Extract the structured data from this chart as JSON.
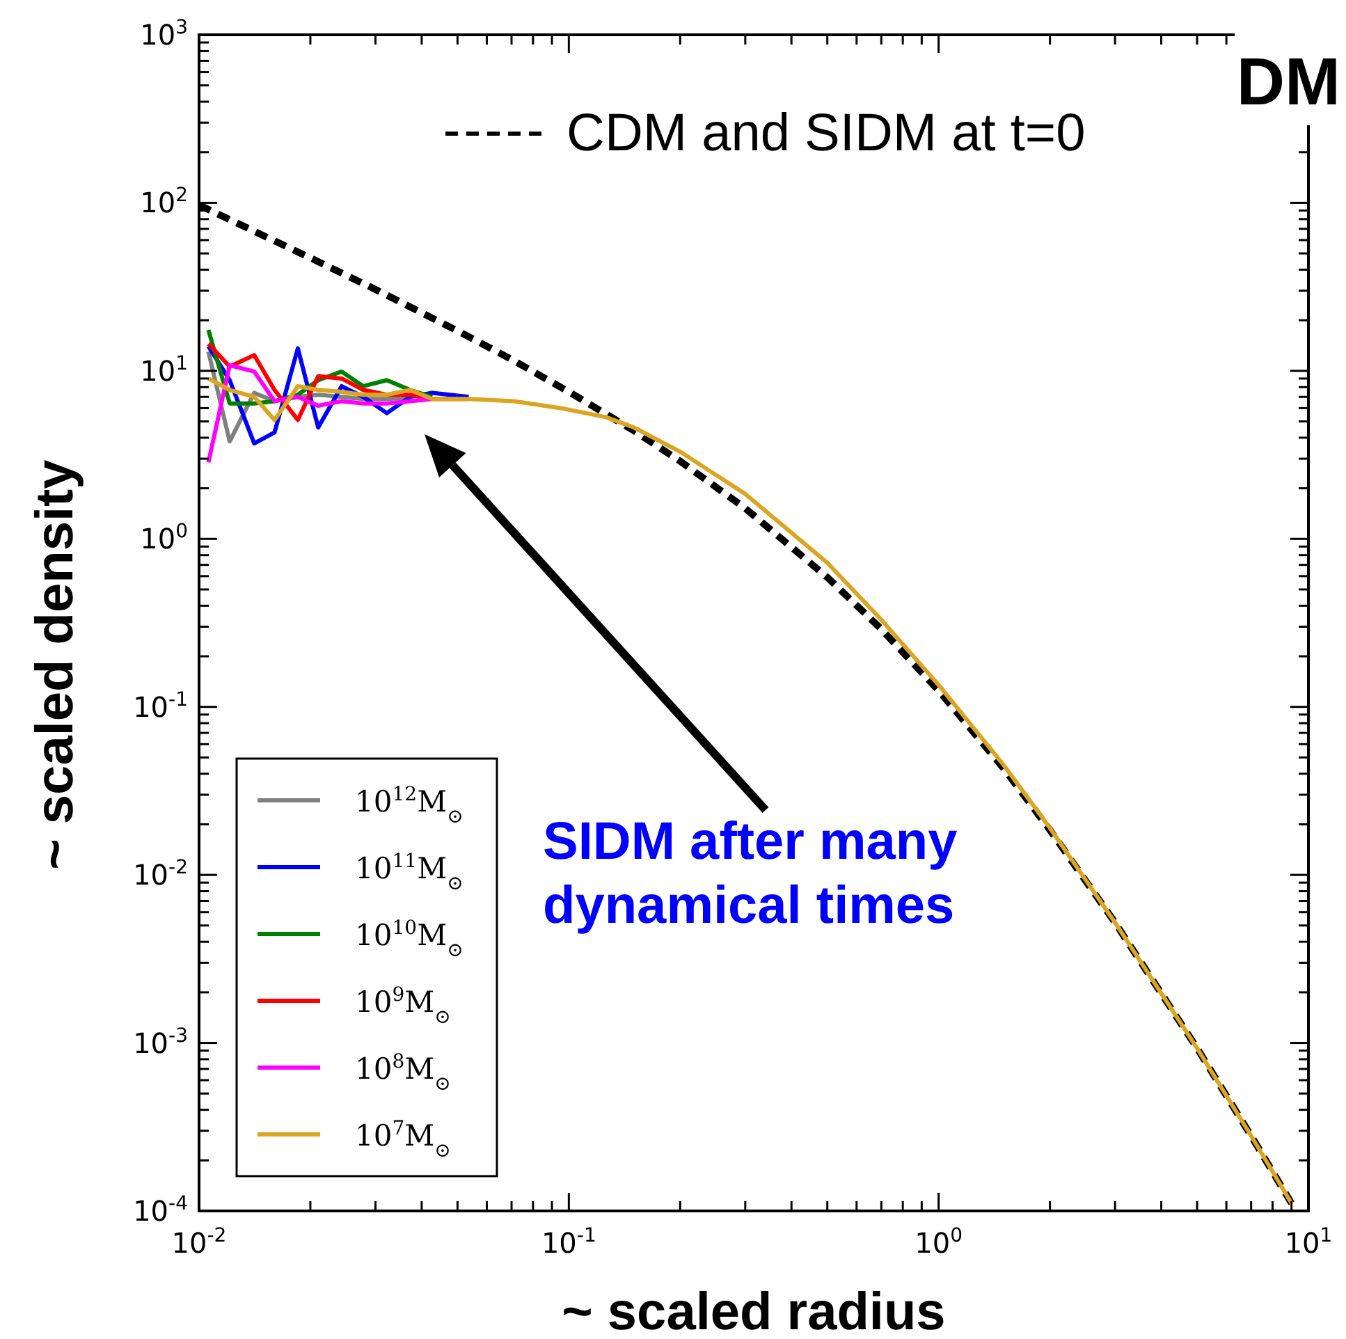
{
  "chart_data": {
    "type": "line",
    "title": "DM",
    "xlabel": "~ scaled radius",
    "ylabel": "~ scaled density",
    "log": "xy",
    "grid": false,
    "legend": "bottom left",
    "marker": "none",
    "xlim": [
      0.01,
      10
    ],
    "ylim": [
      0.0001,
      1000
    ],
    "xticks": [
      {
        "value": 0.01,
        "label": "10$^{-2}$"
      },
      {
        "value": 0.02,
        "label": null
      },
      {
        "value": 0.03,
        "label": null
      },
      {
        "value": 0.04,
        "label": null
      },
      {
        "value": 0.05,
        "label": null
      },
      {
        "value": 0.06,
        "label": null
      },
      {
        "value": 0.07,
        "label": null
      },
      {
        "value": 0.08,
        "label": null
      },
      {
        "value": 0.09,
        "label": null
      },
      {
        "value": 0.1,
        "label": "10$^{-1}$"
      },
      {
        "value": 0.2,
        "label": null
      },
      {
        "value": 0.3,
        "label": null
      },
      {
        "value": 0.4,
        "label": null
      },
      {
        "value": 0.5,
        "label": null
      },
      {
        "value": 0.6,
        "label": null
      },
      {
        "value": 0.7,
        "label": null
      },
      {
        "value": 0.8,
        "label": null
      },
      {
        "value": 0.9,
        "label": null
      },
      {
        "value": 1,
        "label": "10$^{0}$"
      },
      {
        "value": 2,
        "label": null
      },
      {
        "value": 3,
        "label": null
      },
      {
        "value": 4,
        "label": null
      },
      {
        "value": 5,
        "label": null
      },
      {
        "value": 6,
        "label": null
      },
      {
        "value": 7,
        "label": null
      },
      {
        "value": 8,
        "label": null
      },
      {
        "value": 9,
        "label": null
      },
      {
        "value": 10,
        "label": "10$^{1}$"
      }
    ],
    "yticks": [
      {
        "value": 0.0001,
        "label": "10$^{-4}$"
      },
      {
        "value": 0.0002,
        "label": null
      },
      {
        "value": 0.0003,
        "label": null
      },
      {
        "value": 0.0004,
        "label": null
      },
      {
        "value": 0.0005,
        "label": null
      },
      {
        "value": 0.0006,
        "label": null
      },
      {
        "value": 0.0007,
        "label": null
      },
      {
        "value": 0.0008,
        "label": null
      },
      {
        "value": 0.0009,
        "label": null
      },
      {
        "value": 0.001,
        "label": "10$^{-3}$"
      },
      {
        "value": 0.002,
        "label": null
      },
      {
        "value": 0.003,
        "label": null
      },
      {
        "value": 0.004,
        "label": null
      },
      {
        "value": 0.005,
        "label": null
      },
      {
        "value": 0.006,
        "label": null
      },
      {
        "value": 0.007,
        "label": null
      },
      {
        "value": 0.008,
        "label": null
      },
      {
        "value": 0.009,
        "label": null
      },
      {
        "value": 0.01,
        "label": "10$^{-2}$"
      },
      {
        "value": 0.02,
        "label": null
      },
      {
        "value": 0.03,
        "label": null
      },
      {
        "value": 0.04,
        "label": null
      },
      {
        "value": 0.05,
        "label": null
      },
      {
        "value": 0.06,
        "label": null
      },
      {
        "value": 0.07,
        "label": null
      },
      {
        "value": 0.08,
        "label": null
      },
      {
        "value": 0.09,
        "label": null
      },
      {
        "value": 0.1,
        "label": "10$^{-1}$"
      },
      {
        "value": 0.2,
        "label": null
      },
      {
        "value": 0.3,
        "label": null
      },
      {
        "value": 0.4,
        "label": null
      },
      {
        "value": 0.5,
        "label": null
      },
      {
        "value": 0.6,
        "label": null
      },
      {
        "value": 0.7,
        "label": null
      },
      {
        "value": 0.8,
        "label": null
      },
      {
        "value": 0.9,
        "label": null
      },
      {
        "value": 1,
        "label": "10$^{0}$"
      },
      {
        "value": 2,
        "label": null
      },
      {
        "value": 3,
        "label": null
      },
      {
        "value": 4,
        "label": null
      },
      {
        "value": 5,
        "label": null
      },
      {
        "value": 6,
        "label": null
      },
      {
        "value": 7,
        "label": null
      },
      {
        "value": 8,
        "label": null
      },
      {
        "value": 9,
        "label": null
      },
      {
        "value": 10,
        "label": "10$^{1}$"
      },
      {
        "value": 20,
        "label": null
      },
      {
        "value": 30,
        "label": null
      },
      {
        "value": 40,
        "label": null
      },
      {
        "value": 50,
        "label": null
      },
      {
        "value": 60,
        "label": null
      },
      {
        "value": 70,
        "label": null
      },
      {
        "value": 80,
        "label": null
      },
      {
        "value": 90,
        "label": null
      },
      {
        "value": 100,
        "label": "10$^{2}$"
      },
      {
        "value": 200,
        "label": null
      },
      {
        "value": 300,
        "label": null
      },
      {
        "value": 400,
        "label": null
      },
      {
        "value": 500,
        "label": null
      },
      {
        "value": 600,
        "label": null
      },
      {
        "value": 700,
        "label": null
      },
      {
        "value": 800,
        "label": null
      },
      {
        "value": 900,
        "label": null
      },
      {
        "value": 1000,
        "label": "10$^{3}$"
      }
    ],
    "annotations": [
      "SIDM after many\ndynamical times"
    ],
    "series": [
      {
        "name": "CDM and SIDM at t=0",
        "color": "#000000",
        "line_style": "dashed",
        "x": [
          0.01,
          0.02,
          0.03,
          0.05,
          0.07,
          0.1,
          0.15,
          0.2,
          0.3,
          0.5,
          0.7,
          1,
          1.5,
          2,
          3,
          5,
          7,
          9
        ],
        "values": [
          97,
          47,
          30.5,
          17.3,
          11.7,
          7.5,
          4.4,
          2.9,
          1.52,
          0.59,
          0.29,
          0.125,
          0.043,
          0.0185,
          0.0052,
          0.00093,
          0.00028,
          0.000111
        ]
      },
      {
        "name": "10$^{12}$M$_{⊙}$",
        "color": "#808080",
        "line_style": "solid",
        "x": [
          0.0106,
          0.0121,
          0.0141,
          0.016,
          0.0185,
          0.021,
          0.0243,
          0.0278,
          0.0322,
          0.0372
        ],
        "values": [
          13,
          3.8,
          7.4,
          6.6,
          7.0,
          7.2,
          7.0,
          6.8,
          6.8,
          6.9
        ]
      },
      {
        "name": "10$^{11}$M$_{⊙}$",
        "color": "#0000ff",
        "line_style": "solid",
        "x": [
          0.0106,
          0.0121,
          0.0141,
          0.016,
          0.0185,
          0.021,
          0.0243,
          0.0278,
          0.0322,
          0.0372,
          0.0427,
          0.0536
        ],
        "values": [
          14,
          8.8,
          3.7,
          4.3,
          13.6,
          4.6,
          8.1,
          7.0,
          5.6,
          7.0,
          7.4,
          7.0
        ]
      },
      {
        "name": "10$^{10}$M$_{⊙}$",
        "color": "#008000",
        "line_style": "solid",
        "x": [
          0.0106,
          0.0121,
          0.0141,
          0.016,
          0.0185,
          0.021,
          0.0243,
          0.0278,
          0.0322,
          0.0372,
          0.0427
        ],
        "values": [
          17.5,
          6.4,
          6.4,
          6.6,
          7.2,
          8.8,
          9.9,
          8.1,
          8.8,
          7.7,
          7.0
        ]
      },
      {
        "name": "10$^{9}$M$_{⊙}$",
        "color": "#ff0000",
        "line_style": "solid",
        "x": [
          0.0106,
          0.0121,
          0.0141,
          0.016,
          0.0185,
          0.021,
          0.0243,
          0.0278,
          0.0322,
          0.0372,
          0.0427,
          0.0536
        ],
        "values": [
          14.5,
          10.6,
          12.4,
          7.7,
          5.1,
          9.3,
          9.0,
          7.7,
          7.2,
          7.2,
          6.8,
          6.8
        ]
      },
      {
        "name": "10$^{8}$M$_{⊙}$",
        "color": "#ff00ff",
        "line_style": "solid",
        "x": [
          0.0106,
          0.0121,
          0.0141,
          0.016,
          0.0185,
          0.021,
          0.0243,
          0.0278,
          0.0322,
          0.0372,
          0.0427
        ],
        "values": [
          2.85,
          10.8,
          9.9,
          6.6,
          7.0,
          6.2,
          6.6,
          6.4,
          6.4,
          6.6,
          6.8
        ]
      },
      {
        "name": "10$^{7}$M$_{⊙}$",
        "color": "#daa520",
        "line_style": "solid",
        "x": [
          0.0106,
          0.0121,
          0.0141,
          0.016,
          0.0185,
          0.021,
          0.0243,
          0.0278,
          0.0322,
          0.0372,
          0.0427,
          0.0536,
          0.071,
          0.095,
          0.126,
          0.15,
          0.2,
          0.3,
          0.5,
          0.7,
          1,
          1.5,
          2,
          3,
          5,
          7,
          9
        ],
        "values": [
          9,
          7.7,
          7.0,
          5.1,
          8.1,
          7.7,
          7.5,
          7.2,
          7.2,
          7.7,
          6.8,
          6.8,
          6.6,
          6.0,
          5.3,
          4.6,
          3.3,
          1.85,
          0.72,
          0.33,
          0.135,
          0.045,
          0.019,
          0.0052,
          0.00093,
          0.00028,
          0.000111
        ]
      }
    ]
  }
}
